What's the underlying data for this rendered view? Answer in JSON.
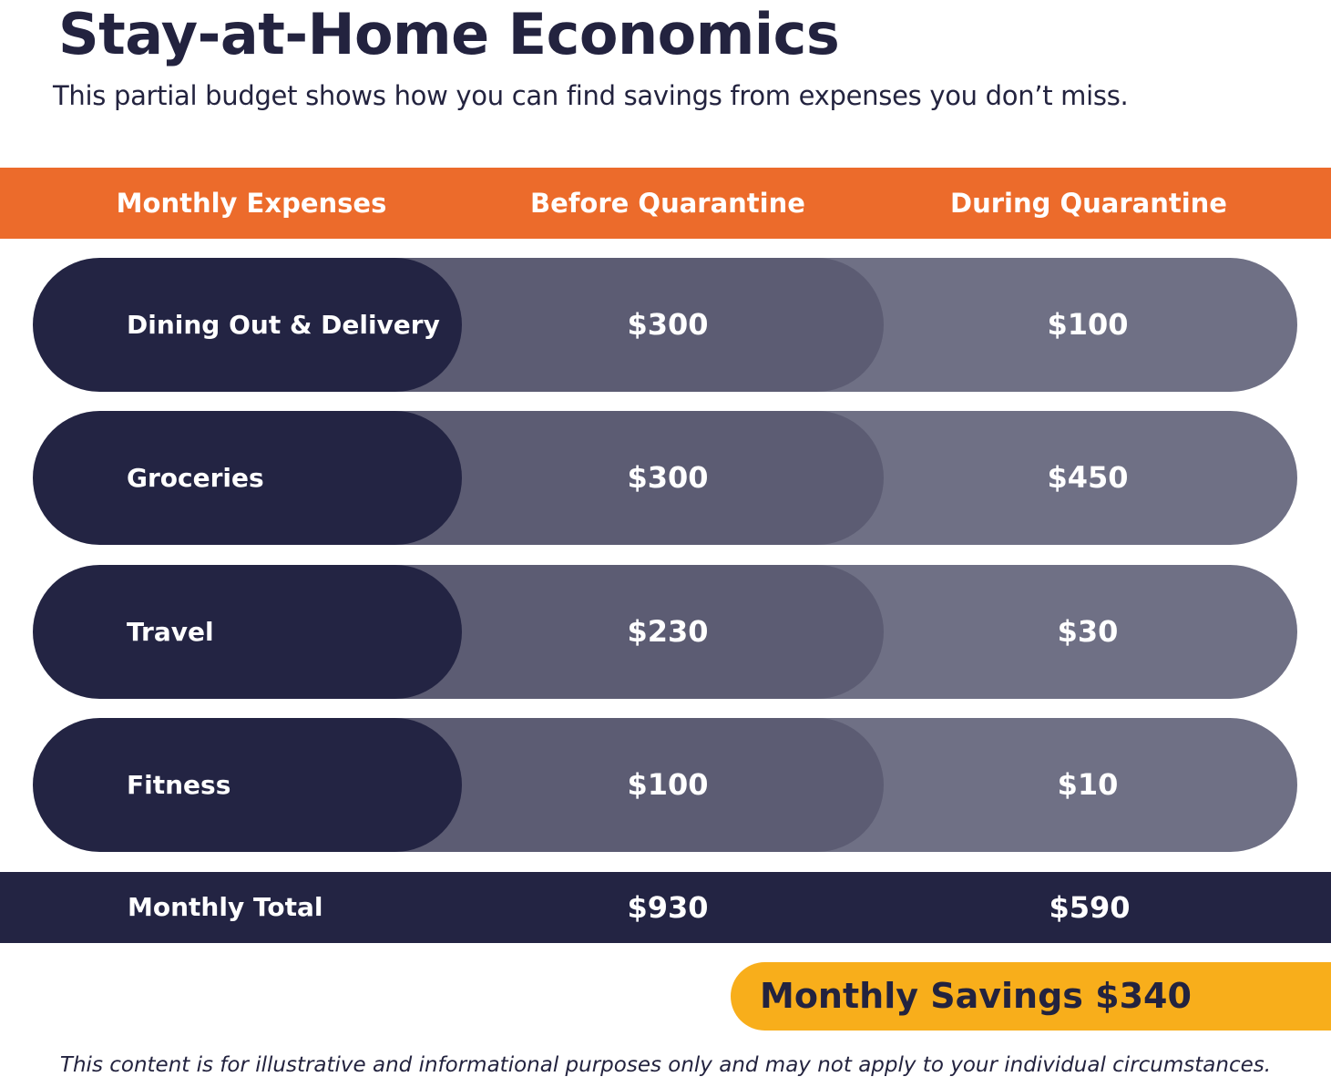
{
  "header": {
    "title": "Stay-at-Home Economics",
    "subtitle": "This partial budget shows how you can find savings from expenses you don’t miss."
  },
  "table": {
    "columns": [
      "Monthly Expenses",
      "Before Quarantine",
      "During Quarantine"
    ],
    "rows": [
      {
        "label": "Dining Out & Delivery",
        "before": "$300",
        "during": "$100"
      },
      {
        "label": "Groceries",
        "before": "$300",
        "during": "$450"
      },
      {
        "label": "Travel",
        "before": "$230",
        "during": "$30"
      },
      {
        "label": "Fitness",
        "before": "$100",
        "during": "$10"
      }
    ],
    "total": {
      "label": "Monthly Total",
      "before": "$930",
      "during": "$590"
    }
  },
  "savings": {
    "label": "Monthly Savings $340"
  },
  "disclaimer": "This content is for illustrative and informational purposes only and may not apply to your individual circumstances.",
  "colors": {
    "header_orange": "#ec6b2b",
    "navy": "#232443",
    "before_gray": "#5c5c73",
    "during_gray": "#6f7085",
    "savings_yellow": "#f8ae1b"
  }
}
